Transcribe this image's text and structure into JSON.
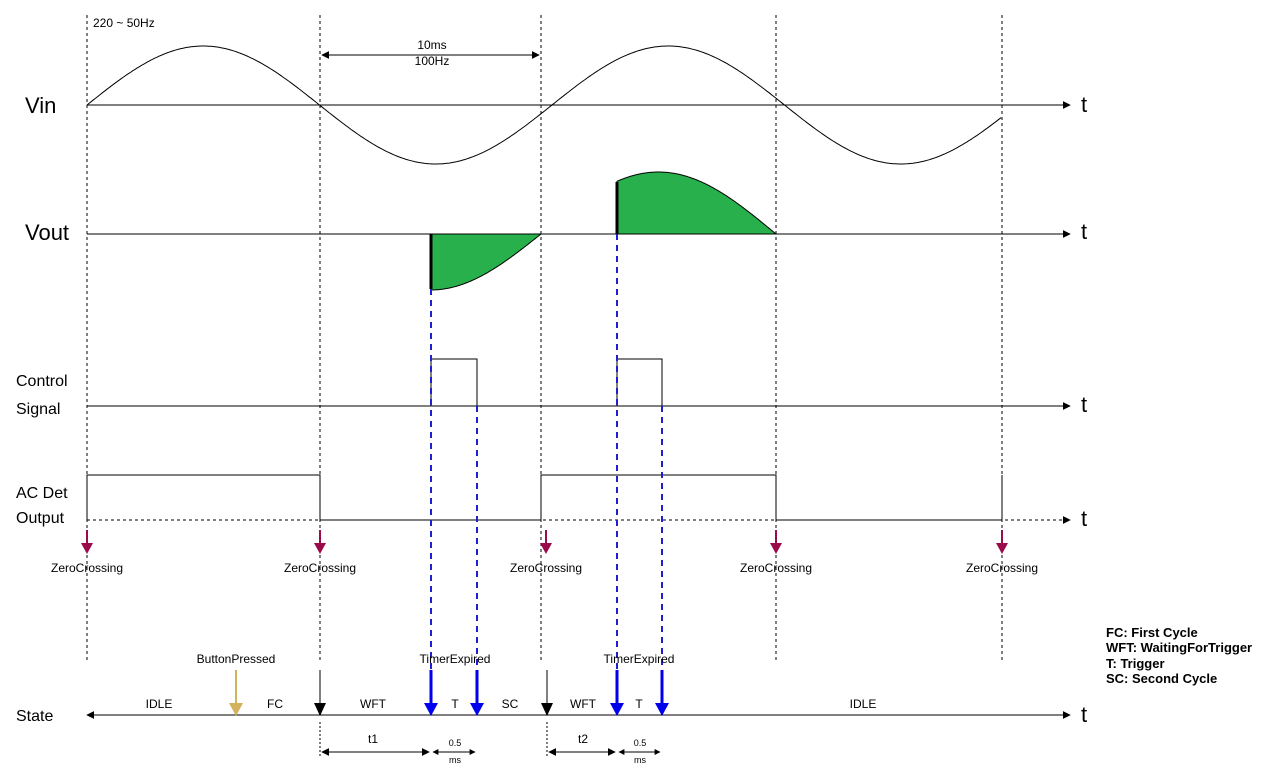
{
  "supply_label": "220 ~ 50Hz",
  "period_label": {
    "line1": "10ms",
    "line2": "100Hz"
  },
  "time_axis_label": "t",
  "signals": {
    "vin": "Vin",
    "vout": "Vout",
    "control_line1": "Control",
    "control_line2": "Signal",
    "acdet_line1": "AC Det",
    "acdet_line2": "Output",
    "state": "State"
  },
  "events": {
    "zero_crossing": "ZeroCrossing",
    "button_pressed": "ButtonPressed",
    "timer_expired": "TimerExpired"
  },
  "states": [
    "IDLE",
    "FC",
    "WFT",
    "T",
    "SC",
    "WFT",
    "T",
    "IDLE"
  ],
  "durations": {
    "t1": "t1",
    "t2": "t2",
    "trigger_value": "0.5",
    "trigger_unit": "ms"
  },
  "legend": [
    "FC: First Cycle",
    "WFT: WaitingForTrigger",
    "T: Trigger",
    "SC: Second Cycle"
  ],
  "colors": {
    "vout_fill": "#27b04b",
    "zero_crossing_arrow": "#9b0a4a",
    "button_arrow": "#d2b25c",
    "timer_dashed": "#1f1fcf",
    "timer_arrow": "#0000ee"
  }
}
